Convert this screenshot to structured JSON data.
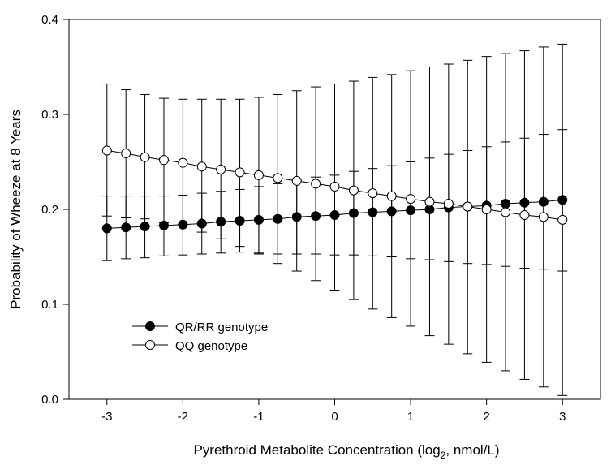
{
  "chart_data": {
    "type": "line",
    "xlabel_main": "Pyrethroid Metabolite Concentration (log",
    "xlabel_sub": "2",
    "xlabel_tail": ", nmol/L)",
    "ylabel": "Probability of Wheeze at 8 Years",
    "xlim": [
      -3.5,
      3.5
    ],
    "ylim": [
      0.0,
      0.4
    ],
    "xticks": [
      "-3",
      "-2",
      "-1",
      "0",
      "1",
      "2",
      "3"
    ],
    "yticks": [
      "0.0",
      "0.1",
      "0.2",
      "0.3",
      "0.4"
    ],
    "legend_position": "lower-left",
    "x": [
      -3,
      -2.75,
      -2.5,
      -2.25,
      -2,
      -1.75,
      -1.5,
      -1.25,
      -1,
      -0.75,
      -0.5,
      -0.25,
      0,
      0.25,
      0.5,
      0.75,
      1,
      1.25,
      1.5,
      1.75,
      2,
      2.25,
      2.5,
      2.75,
      3
    ],
    "series": [
      {
        "name": "QR/RR genotype",
        "marker": "filled-circle",
        "color": "#000000",
        "values": [
          0.18,
          0.181,
          0.182,
          0.183,
          0.184,
          0.185,
          0.187,
          0.188,
          0.189,
          0.19,
          0.192,
          0.193,
          0.194,
          0.196,
          0.197,
          0.198,
          0.199,
          0.2,
          0.202,
          0.203,
          0.204,
          0.206,
          0.207,
          0.208,
          0.21
        ],
        "lower": [
          0.146,
          0.148,
          0.149,
          0.151,
          0.152,
          0.153,
          0.154,
          0.155,
          0.154,
          0.153,
          0.153,
          0.153,
          0.152,
          0.152,
          0.151,
          0.15,
          0.148,
          0.147,
          0.145,
          0.143,
          0.142,
          0.14,
          0.138,
          0.137,
          0.135
        ],
        "upper": [
          0.214,
          0.214,
          0.214,
          0.214,
          0.215,
          0.217,
          0.219,
          0.221,
          0.224,
          0.227,
          0.231,
          0.234,
          0.236,
          0.24,
          0.243,
          0.246,
          0.25,
          0.254,
          0.258,
          0.262,
          0.266,
          0.271,
          0.275,
          0.279,
          0.284
        ]
      },
      {
        "name": "QQ genotype",
        "marker": "open-circle",
        "color": "#000000",
        "values": [
          0.262,
          0.259,
          0.255,
          0.252,
          0.249,
          0.245,
          0.242,
          0.239,
          0.236,
          0.233,
          0.23,
          0.227,
          0.224,
          0.22,
          0.217,
          0.214,
          0.211,
          0.208,
          0.206,
          0.203,
          0.2,
          0.197,
          0.194,
          0.192,
          0.189
        ],
        "lower": [
          0.193,
          0.191,
          0.19,
          0.186,
          0.183,
          0.176,
          0.169,
          0.161,
          0.153,
          0.143,
          0.135,
          0.125,
          0.115,
          0.105,
          0.095,
          0.086,
          0.077,
          0.067,
          0.058,
          0.048,
          0.039,
          0.03,
          0.021,
          0.013,
          0.004
        ],
        "upper": [
          0.332,
          0.326,
          0.321,
          0.317,
          0.316,
          0.316,
          0.316,
          0.316,
          0.318,
          0.321,
          0.325,
          0.329,
          0.332,
          0.335,
          0.339,
          0.342,
          0.346,
          0.35,
          0.353,
          0.357,
          0.361,
          0.364,
          0.367,
          0.371,
          0.374
        ]
      }
    ]
  }
}
